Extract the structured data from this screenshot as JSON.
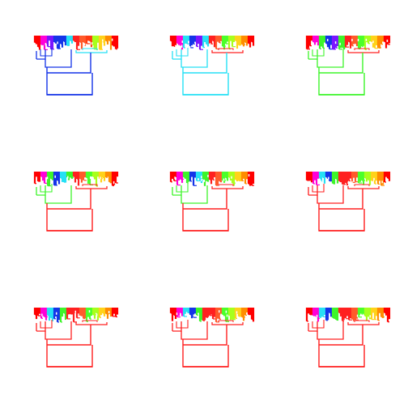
{
  "figure": {
    "background": "#ffffff",
    "rows": 3,
    "cols": 3
  },
  "chart_data": [
    {
      "type": "dendrogram",
      "trunk_color": "#1434e8",
      "outer_colors": [
        "#1434e8",
        "#1434e8",
        "#26e0f5"
      ],
      "top_palette": [
        "#ff0000",
        "#ff00d8",
        "#7a14ff",
        "#1434e8",
        "#1434e8",
        "#26e0f5",
        "#ff2020",
        "#ff5a2a",
        "#ff3b12",
        "#a8ff1c",
        "#ffd21a",
        "#ff8c00",
        "#ff0000"
      ]
    },
    {
      "type": "dendrogram",
      "trunk_color": "#26e0f5",
      "outer_colors": [
        "#26e0f5",
        "#26e0f5",
        "#ff2020"
      ],
      "top_palette": [
        "#ff0000",
        "#ff00d8",
        "#26e0f5",
        "#1434e8",
        "#7a14ff",
        "#26e0f5",
        "#ff2020",
        "#ff5a2a",
        "#4bff2a",
        "#a8ff1c",
        "#ffd21a",
        "#ff8c00",
        "#ff0000"
      ]
    },
    {
      "type": "dendrogram",
      "trunk_color": "#3df52a",
      "outer_colors": [
        "#3df52a",
        "#3df52a",
        "#ff2020"
      ],
      "top_palette": [
        "#ff0000",
        "#ff00d8",
        "#3df52a",
        "#1434e8",
        "#7a14ff",
        "#3df52a",
        "#ff2020",
        "#ff5a2a",
        "#4bff2a",
        "#a8ff1c",
        "#ffd21a",
        "#ff8c00",
        "#ff0000"
      ]
    },
    {
      "type": "dendrogram",
      "trunk_color": "#ff2020",
      "outer_colors": [
        "#3df52a",
        "#3df52a",
        "#ff2020"
      ],
      "top_palette": [
        "#ff0000",
        "#ff00d8",
        "#3df52a",
        "#1434e8",
        "#26e0f5",
        "#3df52a",
        "#ff2020",
        "#ff5a2a",
        "#4bff2a",
        "#a8ff1c",
        "#ffd21a",
        "#ff8c00",
        "#ff0000"
      ]
    },
    {
      "type": "dendrogram",
      "trunk_color": "#ff2020",
      "outer_colors": [
        "#3df52a",
        "#3df52a",
        "#ff2020"
      ],
      "top_palette": [
        "#ff0000",
        "#ff00d8",
        "#3df52a",
        "#1434e8",
        "#26e0f5",
        "#3df52a",
        "#ff2020",
        "#ff5a2a",
        "#4bff2a",
        "#a8ff1c",
        "#ffd21a",
        "#ff8c00",
        "#ff0000"
      ]
    },
    {
      "type": "dendrogram",
      "trunk_color": "#ff2020",
      "outer_colors": [
        "#ff2020",
        "#ff2020",
        "#ff2020"
      ],
      "top_palette": [
        "#ff0000",
        "#ff00d8",
        "#26e0f5",
        "#1434e8",
        "#3df52a",
        "#ff2020",
        "#ff2020",
        "#ff5a2a",
        "#4bff2a",
        "#a8ff1c",
        "#ffd21a",
        "#ff8c00",
        "#ff0000"
      ]
    },
    {
      "type": "dendrogram",
      "trunk_color": "#ff2020",
      "outer_colors": [
        "#ff2020",
        "#ff2020",
        "#ff2020"
      ],
      "top_palette": [
        "#ff0000",
        "#ff00d8",
        "#26e0f5",
        "#1434e8",
        "#3df52a",
        "#ff2020",
        "#ff2020",
        "#ff5a2a",
        "#4bff2a",
        "#a8ff1c",
        "#ffd21a",
        "#ff8c00",
        "#ff0000"
      ]
    },
    {
      "type": "dendrogram",
      "trunk_color": "#ff2020",
      "outer_colors": [
        "#ff2020",
        "#ff2020",
        "#ff2020"
      ],
      "top_palette": [
        "#ff0000",
        "#ff00d8",
        "#26e0f5",
        "#1434e8",
        "#3df52a",
        "#ff2020",
        "#ff2020",
        "#ff5a2a",
        "#4bff2a",
        "#a8ff1c",
        "#ffd21a",
        "#ff8c00",
        "#ff0000"
      ]
    },
    {
      "type": "dendrogram",
      "trunk_color": "#ff2020",
      "outer_colors": [
        "#ff2020",
        "#ff2020",
        "#ff2020"
      ],
      "top_palette": [
        "#ff0000",
        "#ff00d8",
        "#26e0f5",
        "#1434e8",
        "#3df52a",
        "#ff2020",
        "#ff2020",
        "#ff5a2a",
        "#4bff2a",
        "#a8ff1c",
        "#ffd21a",
        "#ff8c00",
        "#ff0000"
      ]
    }
  ]
}
